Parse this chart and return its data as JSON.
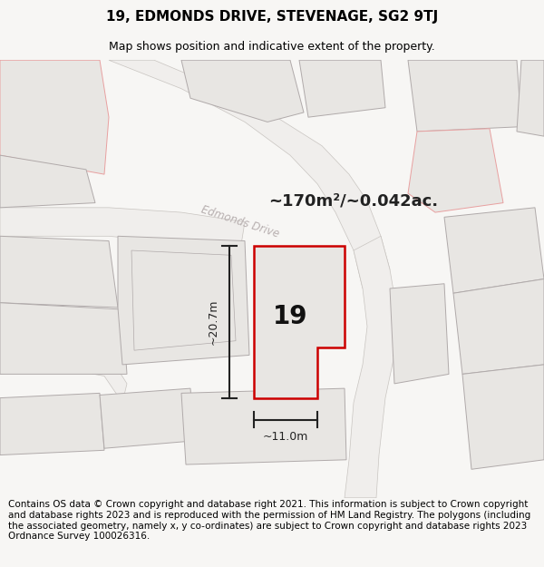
{
  "title_line1": "19, EDMONDS DRIVE, STEVENAGE, SG2 9TJ",
  "title_line2": "Map shows position and indicative extent of the property.",
  "footer_text": "Contains OS data © Crown copyright and database right 2021. This information is subject to Crown copyright and database rights 2023 and is reproduced with the permission of HM Land Registry. The polygons (including the associated geometry, namely x, y co-ordinates) are subject to Crown copyright and database rights 2023 Ordnance Survey 100026316.",
  "area_label": "~170m²/~0.042ac.",
  "property_number": "19",
  "dim_vertical": "~20.7m",
  "dim_horizontal": "~11.0m",
  "road_label": "Edmonds Drive",
  "bg_color": "#f7f6f4",
  "map_bg": "#f2f0ee",
  "building_fill": "#e8e6e3",
  "building_border_gray": "#b0aaaa",
  "building_border_pink": "#e8a0a0",
  "property_fill": "#e8e6e3",
  "property_border": "#cc0000",
  "road_fill": "#ffffff",
  "road_border": "#c8c0c0",
  "title_fontsize": 11,
  "subtitle_fontsize": 9,
  "footer_fontsize": 7.5,
  "road_label_color": "#b8b0b0",
  "road_label_size": 8.5
}
